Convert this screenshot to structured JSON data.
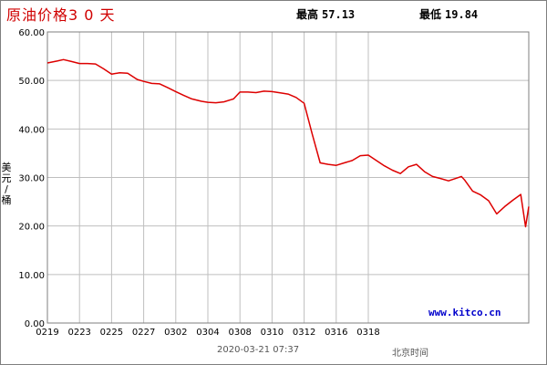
{
  "header": {
    "title": "原油价格3 0 天",
    "high_label": "最高",
    "high_value": "57.13",
    "low_label": "最低",
    "low_value": "19.84"
  },
  "footer": {
    "watermark": "www.kitco.cn",
    "timestamp": "2020-03-21 07:37",
    "timezone": "北京时间"
  },
  "chart_data": {
    "type": "line",
    "title": "原油价格3 0 天",
    "xlabel": "",
    "ylabel": "美元/桶",
    "ylim": [
      0,
      60
    ],
    "yticks": [
      "0.00",
      "10.00",
      "20.00",
      "30.00",
      "40.00",
      "50.00",
      "60.00"
    ],
    "xticks": [
      "0219",
      "0223",
      "0225",
      "0227",
      "0302",
      "0304",
      "0308",
      "0310",
      "0312",
      "0316",
      "0318"
    ],
    "grid": true,
    "line_color": "#dd0000",
    "series": [
      {
        "x": [
          0,
          0.6,
          1,
          1.5,
          2,
          2.5,
          3,
          3.5,
          4,
          4.5,
          5,
          5.6,
          6,
          6.5,
          7,
          7.5,
          8,
          8.5,
          9,
          9.6,
          10,
          10.5,
          11,
          11.6,
          12,
          12.5,
          13,
          13.5,
          14,
          14.6,
          15,
          15.5,
          16,
          16.5,
          17,
          17.5,
          18,
          18.5,
          19,
          19.5,
          20,
          20.5,
          21,
          21.5,
          22,
          22.5,
          23,
          23.5,
          24,
          24.5,
          25,
          25.8,
          26,
          26.5,
          27,
          27.5,
          28,
          28.5,
          29,
          29.5,
          29.8,
          30
        ],
        "values": [
          53.6,
          54.0,
          54.3,
          53.9,
          53.5,
          53.5,
          53.4,
          52.4,
          51.3,
          51.6,
          51.5,
          50.2,
          49.8,
          49.4,
          49.3,
          48.5,
          47.7,
          46.9,
          46.2,
          45.7,
          45.5,
          45.4,
          45.6,
          46.2,
          47.6,
          47.6,
          47.5,
          47.8,
          47.7,
          47.4,
          47.2,
          46.5,
          45.3,
          39.0,
          33.0,
          32.7,
          32.5,
          33.0,
          33.5,
          34.5,
          34.6,
          33.5,
          32.4,
          31.5,
          30.8,
          32.2,
          32.7,
          31.2,
          30.2,
          29.8,
          29.3,
          30.2,
          29.5,
          27.2,
          26.4,
          25.2,
          22.5,
          24.0,
          25.3,
          26.5,
          19.84,
          24.0
        ]
      }
    ]
  }
}
